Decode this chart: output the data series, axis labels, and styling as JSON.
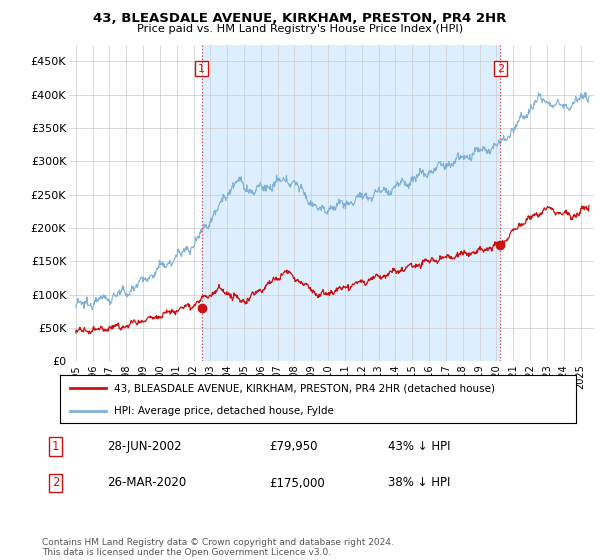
{
  "title": "43, BLEASDALE AVENUE, KIRKHAM, PRESTON, PR4 2HR",
  "subtitle": "Price paid vs. HM Land Registry's House Price Index (HPI)",
  "ylim": [
    0,
    475000
  ],
  "yticks": [
    0,
    50000,
    100000,
    150000,
    200000,
    250000,
    300000,
    350000,
    400000,
    450000
  ],
  "ytick_labels": [
    "£0",
    "£50K",
    "£100K",
    "£150K",
    "£200K",
    "£250K",
    "£300K",
    "£350K",
    "£400K",
    "£450K"
  ],
  "hpi_color": "#7fb0d8",
  "price_color": "#cc1111",
  "shade_color": "#ddeeff",
  "marker1_date": 2002.49,
  "marker1_price": 79950,
  "marker2_date": 2020.23,
  "marker2_price": 175000,
  "legend_line1": "43, BLEASDALE AVENUE, KIRKHAM, PRESTON, PR4 2HR (detached house)",
  "legend_line2": "HPI: Average price, detached house, Fylde",
  "footnote": "Contains HM Land Registry data © Crown copyright and database right 2024.\nThis data is licensed under the Open Government Licence v3.0."
}
